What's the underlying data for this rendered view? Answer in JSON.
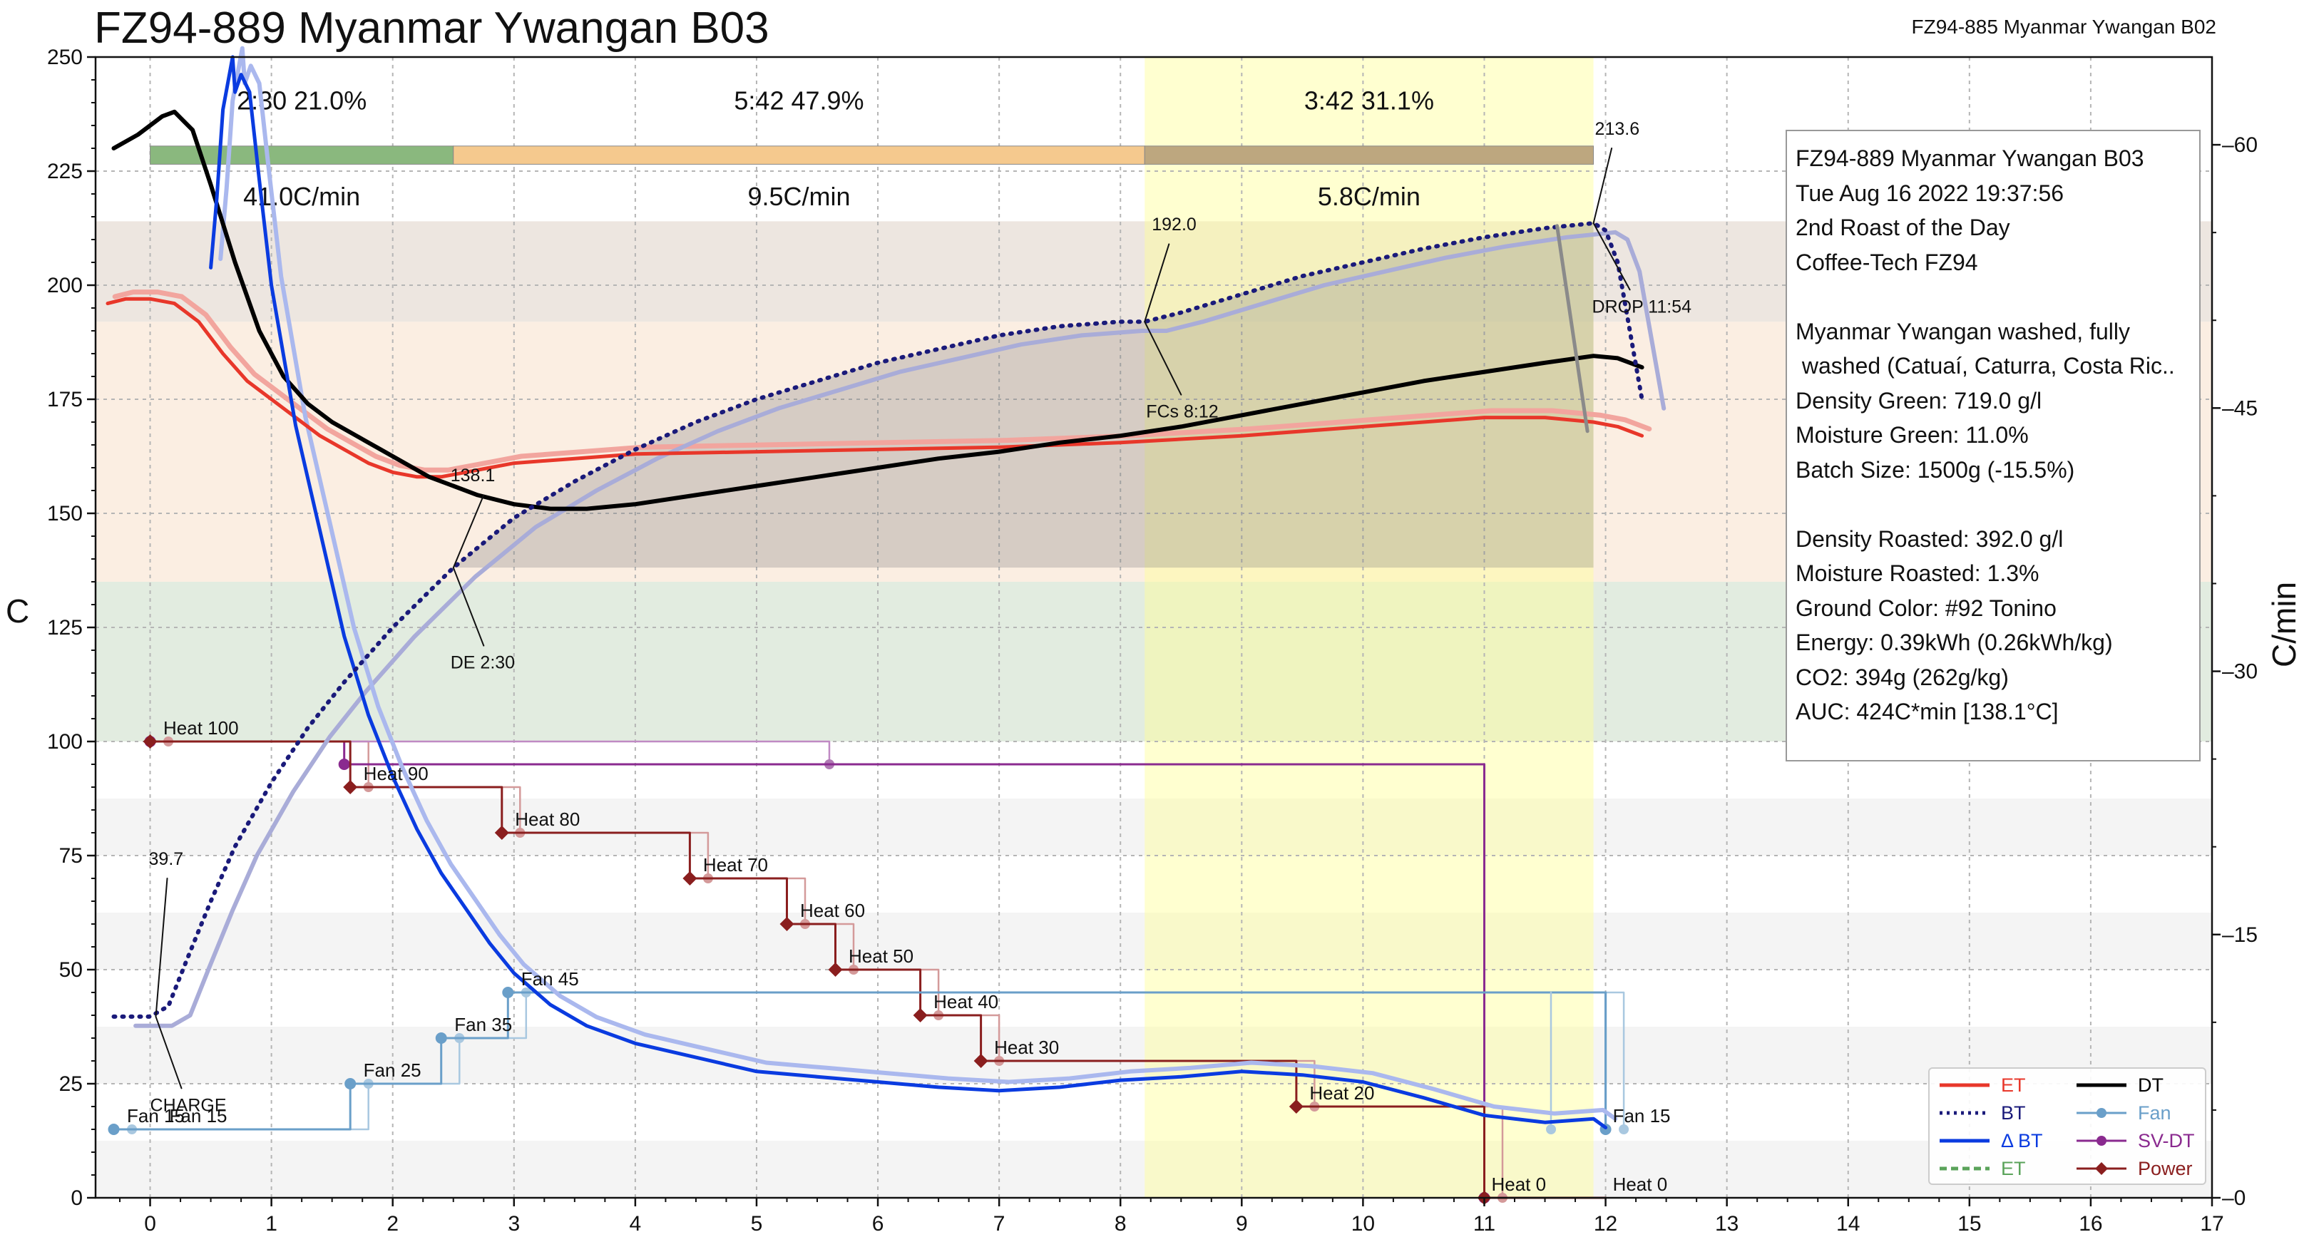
{
  "title": "FZ94-889 Myanmar Ywangan B03",
  "subtitle": "FZ94-885 Myanmar Ywangan B02",
  "ylabel_left": "C",
  "ylabel_right": "C/min",
  "info_lines": [
    "FZ94-889 Myanmar Ywangan B03",
    "Tue Aug 16 2022 19:37:56",
    "2nd Roast of the Day",
    "Coffee-Tech FZ94",
    "",
    "Myanmar Ywangan washed, fully",
    " washed (Catuaí, Caturra, Costa Ric..",
    "Density Green: 719.0 g/l",
    "Moisture Green: 11.0%",
    "Batch Size: 1500g (-15.5%)",
    "",
    "Density Roasted: 392.0 g/l",
    "Moisture Roasted: 1.3%",
    "Ground Color: #92 Tonino",
    "Energy: 0.39kWh (0.26kWh/kg)",
    "CO2: 394g (262g/kg)",
    "AUC: 424C*min [138.1°C]"
  ],
  "legend": [
    {
      "label": "ET",
      "color": "#e8372a",
      "style": "solid"
    },
    {
      "label": "DT",
      "color": "#000000",
      "style": "solid"
    },
    {
      "label": "BT",
      "color": "#1a1a7a",
      "style": "dotted"
    },
    {
      "label": "Fan",
      "color": "#6a9fc9",
      "style": "marker"
    },
    {
      "label": "Δ BT",
      "color": "#0a3be0",
      "style": "solid"
    },
    {
      "label": "SV-DT",
      "color": "#8a2a8f",
      "style": "marker"
    },
    {
      "label": "ET",
      "color": "#5aa35a",
      "style": "dashed"
    },
    {
      "label": "Power",
      "color": "#8a1e1e",
      "style": "diamond"
    }
  ],
  "phases": [
    {
      "label": "2:30  21.0%",
      "ror": "41.0C/min",
      "start": 0,
      "end": 2.5,
      "color": "#8ab87e"
    },
    {
      "label": "5:42  47.9%",
      "ror": "9.5C/min",
      "start": 2.5,
      "end": 8.2,
      "color": "#f5c98e"
    },
    {
      "label": "3:42  31.1%",
      "ror": "5.8C/min",
      "start": 8.2,
      "end": 11.9,
      "color": "#bda77f"
    }
  ],
  "annotations": [
    {
      "text": "39.7",
      "x": 0.0,
      "y": 39.7,
      "type": "value"
    },
    {
      "text": "CHARGE",
      "x": 0.0,
      "y": 39.7,
      "type": "event"
    },
    {
      "text": "138.1",
      "x": 2.5,
      "y": 138.1,
      "type": "value"
    },
    {
      "text": "DE 2:30",
      "x": 2.5,
      "y": 138.1,
      "type": "event"
    },
    {
      "text": "192.0",
      "x": 8.2,
      "y": 192.0,
      "type": "value"
    },
    {
      "text": "FCs 8:12",
      "x": 8.2,
      "y": 192.0,
      "type": "event"
    },
    {
      "text": "213.6",
      "x": 11.9,
      "y": 213.6,
      "type": "value"
    },
    {
      "text": "DROP 11:54",
      "x": 11.9,
      "y": 213.6,
      "type": "event"
    }
  ],
  "chart_data": {
    "type": "line",
    "xlim": [
      -0.45,
      17
    ],
    "ylim": [
      0,
      250
    ],
    "ylim_right": [
      0,
      65
    ],
    "xticks": [
      0,
      1,
      2,
      3,
      4,
      5,
      6,
      7,
      8,
      9,
      10,
      11,
      12,
      13,
      14,
      15,
      16,
      17
    ],
    "yticks": [
      0,
      25,
      50,
      75,
      100,
      125,
      150,
      175,
      200,
      225,
      250
    ],
    "yticks_right": [
      0,
      15,
      30,
      45,
      60
    ],
    "grid": true,
    "legend_position": "bottom-right",
    "series": [
      {
        "name": "ET",
        "axis": "left",
        "color": "#e8372a",
        "width": 5,
        "x": [
          -0.35,
          -0.2,
          0,
          0.2,
          0.4,
          0.6,
          0.8,
          1.0,
          1.2,
          1.4,
          1.6,
          1.8,
          2.0,
          2.2,
          2.4,
          2.6,
          2.8,
          3.0,
          3.5,
          4,
          5,
          6,
          7,
          8,
          9,
          10,
          11,
          11.5,
          11.9,
          12.1,
          12.3
        ],
        "y": [
          196,
          197,
          197,
          196,
          192,
          185,
          179,
          175,
          171,
          167,
          164,
          161,
          159,
          158,
          158,
          159,
          160,
          161,
          162,
          163,
          163.5,
          164,
          164.5,
          165.5,
          167,
          169,
          171,
          171,
          170,
          169,
          167
        ]
      },
      {
        "name": "BT",
        "axis": "left",
        "color": "#1a1a7a",
        "width": 5,
        "dash": "3,9",
        "x": [
          -0.3,
          0,
          0.15,
          0.3,
          0.5,
          0.7,
          1.0,
          1.3,
          1.6,
          2.0,
          2.5,
          3.0,
          3.5,
          4,
          4.5,
          5,
          5.5,
          6,
          6.5,
          7,
          7.5,
          8,
          8.2,
          8.5,
          9,
          9.5,
          10,
          10.5,
          11,
          11.5,
          11.9,
          12.0,
          12.1,
          12.2,
          12.3
        ],
        "y": [
          39.7,
          39.7,
          42,
          52,
          65,
          77,
          91,
          103,
          113,
          125,
          138.1,
          149,
          157,
          164,
          170,
          175,
          179,
          183,
          186,
          189,
          191,
          192,
          192.0,
          194,
          198,
          202,
          205,
          208,
          210.5,
          212.5,
          213.6,
          212,
          205,
          190,
          175
        ]
      },
      {
        "name": "DT",
        "axis": "left",
        "color": "#000000",
        "width": 6,
        "x": [
          -0.3,
          -0.1,
          0.1,
          0.2,
          0.35,
          0.5,
          0.7,
          0.9,
          1.1,
          1.3,
          1.5,
          1.7,
          1.9,
          2.1,
          2.3,
          2.5,
          2.7,
          3.0,
          3.3,
          3.6,
          4,
          4.5,
          5,
          5.5,
          6,
          6.5,
          7,
          7.5,
          8,
          8.5,
          9,
          9.5,
          10,
          10.5,
          11,
          11.5,
          11.9,
          12.1,
          12.3
        ],
        "y": [
          230,
          233,
          237,
          238,
          234,
          222,
          205,
          190,
          180,
          174,
          170,
          167,
          164,
          161,
          158,
          156,
          154,
          152,
          151,
          151,
          152,
          154,
          156,
          158,
          160,
          162,
          163.5,
          165.5,
          167,
          169,
          171.5,
          174,
          176.5,
          179,
          181,
          183,
          184.5,
          184,
          182
        ]
      },
      {
        "name": "Δ BT",
        "axis": "right",
        "color": "#0a3be0",
        "width": 5,
        "x": [
          0.5,
          0.55,
          0.6,
          0.68,
          0.7,
          0.75,
          0.82,
          0.9,
          1.0,
          1.2,
          1.4,
          1.6,
          1.8,
          2.0,
          2.2,
          2.4,
          2.6,
          2.8,
          3.0,
          3.3,
          3.6,
          4,
          4.5,
          5,
          5.5,
          6,
          6.5,
          7,
          7.5,
          8,
          8.5,
          9,
          9.5,
          10,
          10.5,
          11,
          11.5,
          11.9,
          12.0
        ],
        "y": [
          53,
          57,
          62,
          65,
          63,
          64,
          63,
          58,
          52,
          44,
          38,
          32,
          27.5,
          24,
          21,
          18.5,
          16.5,
          14.5,
          12.8,
          11,
          9.8,
          8.8,
          8,
          7.2,
          6.9,
          6.6,
          6.3,
          6.1,
          6.3,
          6.7,
          6.9,
          7.2,
          7.0,
          6.6,
          5.7,
          4.7,
          4.3,
          4.5,
          4.0
        ]
      },
      {
        "name": "Fan",
        "axis": "left",
        "color": "#6a9fc9",
        "width": 3,
        "step": true,
        "x": [
          -0.3,
          1.65,
          2.4,
          2.95,
          12.0
        ],
        "y": [
          15,
          25,
          35,
          45,
          15
        ]
      },
      {
        "name": "SV-DT",
        "axis": "left",
        "color": "#8a2a8f",
        "width": 3,
        "step": true,
        "x": [
          0,
          1.6,
          11.0
        ],
        "y": [
          100,
          95,
          0
        ]
      },
      {
        "name": "Power",
        "axis": "left",
        "color": "#8a1e1e",
        "width": 3,
        "step": true,
        "x": [
          0,
          1.65,
          2.9,
          4.45,
          5.25,
          5.65,
          6.35,
          6.85,
          9.45,
          11.0
        ],
        "y": [
          100,
          90,
          80,
          70,
          60,
          50,
          40,
          30,
          20,
          0
        ]
      }
    ],
    "event_labels": [
      {
        "text": "Heat 100",
        "x": 0.05,
        "y": 100
      },
      {
        "text": "Heat 90",
        "x": 1.7,
        "y": 90
      },
      {
        "text": "Heat 80",
        "x": 2.95,
        "y": 80
      },
      {
        "text": "Heat 70",
        "x": 4.5,
        "y": 70
      },
      {
        "text": "Heat 60",
        "x": 5.3,
        "y": 60
      },
      {
        "text": "Heat 50",
        "x": 5.7,
        "y": 50
      },
      {
        "text": "Heat 40",
        "x": 6.4,
        "y": 40
      },
      {
        "text": "Heat 30",
        "x": 6.9,
        "y": 30
      },
      {
        "text": "Heat 20",
        "x": 9.5,
        "y": 20
      },
      {
        "text": "Heat 0",
        "x": 11.0,
        "y": 0
      },
      {
        "text": "Heat 0",
        "x": 12.0,
        "y": 0
      },
      {
        "text": "Fan 15",
        "x": -0.25,
        "y": 15
      },
      {
        "text": "Fan 15",
        "x": 0.1,
        "y": 15
      },
      {
        "text": "Fan 25",
        "x": 1.7,
        "y": 25
      },
      {
        "text": "Fan 35",
        "x": 2.45,
        "y": 35
      },
      {
        "text": "Fan 45",
        "x": 3.0,
        "y": 45
      },
      {
        "text": "Fan 15",
        "x": 12.0,
        "y": 15
      }
    ]
  }
}
